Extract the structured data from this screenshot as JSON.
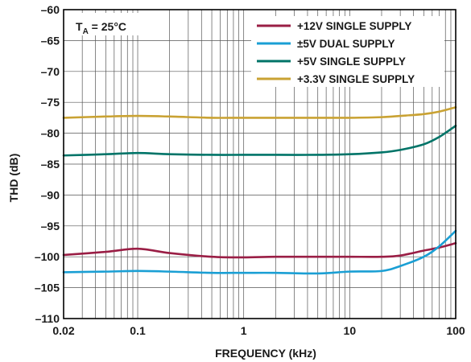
{
  "chart_data": {
    "type": "line",
    "xlabel": "FREQUENCY (kHz)",
    "ylabel": "THD (dB)",
    "xscale": "log",
    "xlim": [
      0.02,
      100
    ],
    "ylim": [
      -110,
      -60
    ],
    "xticks": [
      0.02,
      0.1,
      1,
      10,
      100
    ],
    "xtick_labels": [
      "0.02",
      "0.1",
      "1",
      "10",
      "100"
    ],
    "yticks": [
      -60,
      -65,
      -70,
      -75,
      -80,
      -85,
      -90,
      -95,
      -100,
      -105,
      -110
    ],
    "ytick_labels": [
      "–60",
      "–65",
      "–70",
      "–75",
      "–80",
      "–85",
      "–90",
      "–95",
      "–100",
      "–105",
      "–110"
    ],
    "grid": true,
    "annotation": {
      "main": "T",
      "sub": "A",
      "rest": " = 25°C"
    },
    "legend_position": "top-right",
    "series": [
      {
        "name": "+12V SINGLE SUPPLY",
        "color": "#9a1e45",
        "points": [
          [
            0.02,
            -99.7
          ],
          [
            0.05,
            -99.2
          ],
          [
            0.1,
            -98.7
          ],
          [
            0.2,
            -99.4
          ],
          [
            0.5,
            -100.0
          ],
          [
            1,
            -100.1
          ],
          [
            2,
            -100.0
          ],
          [
            5,
            -100.0
          ],
          [
            10,
            -100.0
          ],
          [
            20,
            -100.0
          ],
          [
            30,
            -99.8
          ],
          [
            50,
            -99.0
          ],
          [
            70,
            -98.5
          ],
          [
            100,
            -97.8
          ]
        ]
      },
      {
        "name": "±5V DUAL SUPPLY",
        "color": "#1a9fd4",
        "points": [
          [
            0.02,
            -102.5
          ],
          [
            0.05,
            -102.4
          ],
          [
            0.1,
            -102.3
          ],
          [
            0.2,
            -102.4
          ],
          [
            0.5,
            -102.6
          ],
          [
            1,
            -102.6
          ],
          [
            2,
            -102.6
          ],
          [
            5,
            -102.7
          ],
          [
            10,
            -102.4
          ],
          [
            20,
            -102.3
          ],
          [
            30,
            -101.5
          ],
          [
            50,
            -100.0
          ],
          [
            70,
            -98.3
          ],
          [
            100,
            -95.8
          ]
        ]
      },
      {
        "name": "+5V SINGLE SUPPLY",
        "color": "#007468",
        "points": [
          [
            0.02,
            -83.6
          ],
          [
            0.05,
            -83.4
          ],
          [
            0.1,
            -83.2
          ],
          [
            0.2,
            -83.4
          ],
          [
            0.5,
            -83.5
          ],
          [
            1,
            -83.5
          ],
          [
            2,
            -83.5
          ],
          [
            5,
            -83.5
          ],
          [
            10,
            -83.4
          ],
          [
            20,
            -83.1
          ],
          [
            30,
            -82.7
          ],
          [
            50,
            -81.8
          ],
          [
            70,
            -80.6
          ],
          [
            100,
            -78.8
          ]
        ]
      },
      {
        "name": "+3.3V SINGLE SUPPLY",
        "color": "#c9a233",
        "points": [
          [
            0.02,
            -77.5
          ],
          [
            0.05,
            -77.3
          ],
          [
            0.1,
            -77.2
          ],
          [
            0.2,
            -77.3
          ],
          [
            0.5,
            -77.5
          ],
          [
            1,
            -77.5
          ],
          [
            2,
            -77.5
          ],
          [
            5,
            -77.5
          ],
          [
            10,
            -77.5
          ],
          [
            20,
            -77.4
          ],
          [
            30,
            -77.2
          ],
          [
            50,
            -76.9
          ],
          [
            70,
            -76.5
          ],
          [
            100,
            -75.8
          ]
        ]
      }
    ]
  }
}
